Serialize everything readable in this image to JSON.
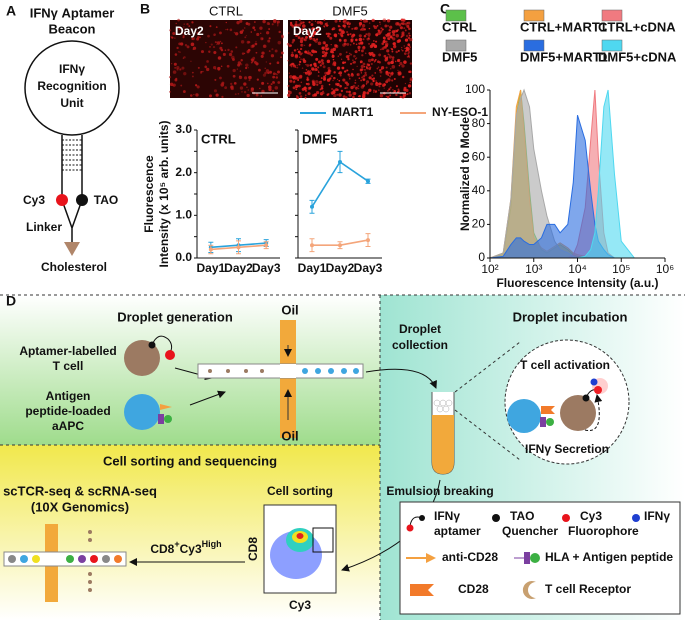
{
  "panel_a": {
    "letter": "A",
    "title": [
      "IFNγ Aptamer",
      "Beacon"
    ],
    "unit": [
      "IFNγ",
      "Recognition",
      "Unit"
    ],
    "cy3": "Cy3",
    "tao": "TAO",
    "linker": "Linker",
    "cholesterol": "Cholesterol"
  },
  "panel_b": {
    "letter": "B",
    "images": [
      {
        "condition": "CTRL",
        "label": "Day2"
      },
      {
        "condition": "DMF5",
        "label": "Day2"
      }
    ]
  },
  "panel_c": {
    "letter": "C"
  },
  "chart_data": [
    {
      "type": "line",
      "title": "CTRL",
      "ylabel": [
        "Fluorescence",
        "Intensity (x 10⁵ arb. units)"
      ],
      "categories": [
        "Day1",
        "Day2",
        "Day3"
      ],
      "ylim": [
        0,
        3
      ],
      "yticks": [
        {
          "value": 0,
          "label": "0.0"
        },
        0.5,
        {
          "value": 1,
          "label": "1.0"
        },
        1.5,
        {
          "value": 2,
          "label": "2.0"
        },
        2.5,
        {
          "value": 3,
          "label": "3.0"
        }
      ],
      "series": [
        {
          "name": "MART1",
          "color": "#29a3dc",
          "values": [
            0.25,
            0.3,
            0.35
          ],
          "errors": [
            0.12,
            0.15,
            0.08
          ]
        },
        {
          "name": "NY-ESO-1",
          "color": "#f4a57a",
          "values": [
            0.2,
            0.25,
            0.3
          ],
          "errors": [
            0.1,
            0.15,
            0.08
          ]
        }
      ]
    },
    {
      "type": "line",
      "title": "DMF5",
      "sharey": true,
      "categories": [
        "Day1",
        "Day2",
        "Day3"
      ],
      "series": [
        {
          "color": "#29a3dc",
          "values": [
            1.2,
            2.25,
            1.8
          ],
          "errors": [
            0.15,
            0.25,
            0.05
          ]
        },
        {
          "color": "#f4a57a",
          "values": [
            0.3,
            0.3,
            0.42
          ],
          "errors": [
            0.15,
            0.08,
            0.15
          ]
        }
      ]
    },
    {
      "type": "area",
      "ylabel": "Normalized to Mode",
      "xlabel": "Fluorescence Intensity (a.u.)",
      "xscale": "log",
      "x": [
        100,
        200,
        300,
        400,
        500,
        600,
        800,
        1000,
        1500,
        2000,
        3000,
        4000,
        6000,
        8000,
        10000,
        15000,
        20000,
        25000,
        30000,
        40000,
        50000,
        70000,
        100000,
        200000
      ],
      "xlim": [
        100,
        1000000
      ],
      "xticks": [
        {
          "value": 100,
          "label": "10²"
        },
        {
          "value": 1000,
          "label": "10³"
        },
        {
          "value": 10000,
          "label": "10⁴"
        },
        {
          "value": 100000,
          "label": "10⁵"
        },
        {
          "value": 1000000,
          "label": "10⁶"
        }
      ],
      "ylim": [
        0,
        100
      ],
      "yticks": [
        0,
        20,
        40,
        60,
        80,
        100
      ],
      "series": [
        {
          "name": "CTRL",
          "color": "#5cc04a",
          "values": [
            0,
            2,
            30,
            85,
            100,
            80,
            40,
            15,
            5,
            3,
            6,
            8,
            5,
            2,
            1,
            0.5,
            0,
            0,
            0,
            0,
            0,
            0,
            0,
            0
          ]
        },
        {
          "name": "CTRL+MART1",
          "color": "#f4a040",
          "values": [
            0,
            3,
            35,
            90,
            100,
            75,
            35,
            12,
            6,
            4,
            7,
            9,
            6,
            3,
            2,
            1,
            0,
            0,
            0,
            0,
            0,
            0,
            0,
            0
          ]
        },
        {
          "name": "CTRL+cDNA",
          "color": "#f07a80",
          "values": [
            0,
            0,
            0,
            0,
            0,
            0,
            0,
            0,
            0,
            0,
            0,
            0,
            0,
            2,
            8,
            30,
            70,
            100,
            60,
            15,
            3,
            0,
            0,
            0
          ]
        },
        {
          "name": "DMF5",
          "color": "#a8a8a8",
          "values": [
            0,
            3,
            35,
            85,
            95,
            100,
            90,
            65,
            40,
            25,
            10,
            5,
            3,
            1,
            0,
            0,
            0,
            0,
            0,
            0,
            0,
            0,
            0,
            0
          ]
        },
        {
          "name": "DMF5+MART1",
          "color": "#2a6de0",
          "values": [
            0,
            1,
            8,
            12,
            12,
            10,
            8,
            8,
            12,
            20,
            20,
            15,
            20,
            45,
            85,
            70,
            40,
            20,
            10,
            5,
            2,
            0,
            0,
            0
          ]
        },
        {
          "name": "DMF5+cDNA",
          "color": "#4fd8f0",
          "values": [
            0,
            0,
            0,
            0,
            0,
            0,
            0,
            0,
            0,
            0,
            0,
            0,
            0,
            0,
            0,
            1,
            5,
            15,
            40,
            90,
            100,
            50,
            10,
            0
          ]
        }
      ]
    }
  ],
  "panel_d": {
    "letter": "D",
    "droplet_generation": "Droplet generation",
    "oil_top": "Oil",
    "oil_bottom": "Oil",
    "t_cell": [
      "Aptamer-labelled",
      "T cell"
    ],
    "aapc": [
      "Antigen",
      "peptide-loaded",
      "aAPC"
    ],
    "droplet_collection": [
      "Droplet",
      "collection"
    ],
    "droplet_incubation": "Droplet incubation",
    "activation": "T cell activation",
    "secretion": "IFNγ Secretion",
    "sorting_sequencing": "Cell sorting and sequencing",
    "sequencing": [
      "scTCR-seq & scRNA-seq",
      "(10X Genomics)"
    ],
    "cell_sorting": "Cell sorting",
    "emulsion_breaking": "Emulsion breaking",
    "gate": [
      "CD8",
      "+",
      "Cy3",
      "High"
    ],
    "facs_y": "CD8",
    "facs_x": "Cy3",
    "legend": {
      "aptamer": [
        "IFNγ",
        "aptamer"
      ],
      "tao": [
        "TAO",
        "Quencher"
      ],
      "cy3": [
        "Cy3",
        "Fluorophore"
      ],
      "ifng": "IFNγ",
      "anti_cd28": "anti-CD28",
      "hla": "HLA + Antigen peptide",
      "cd28": "CD28",
      "tcr": "T cell Receptor"
    }
  }
}
